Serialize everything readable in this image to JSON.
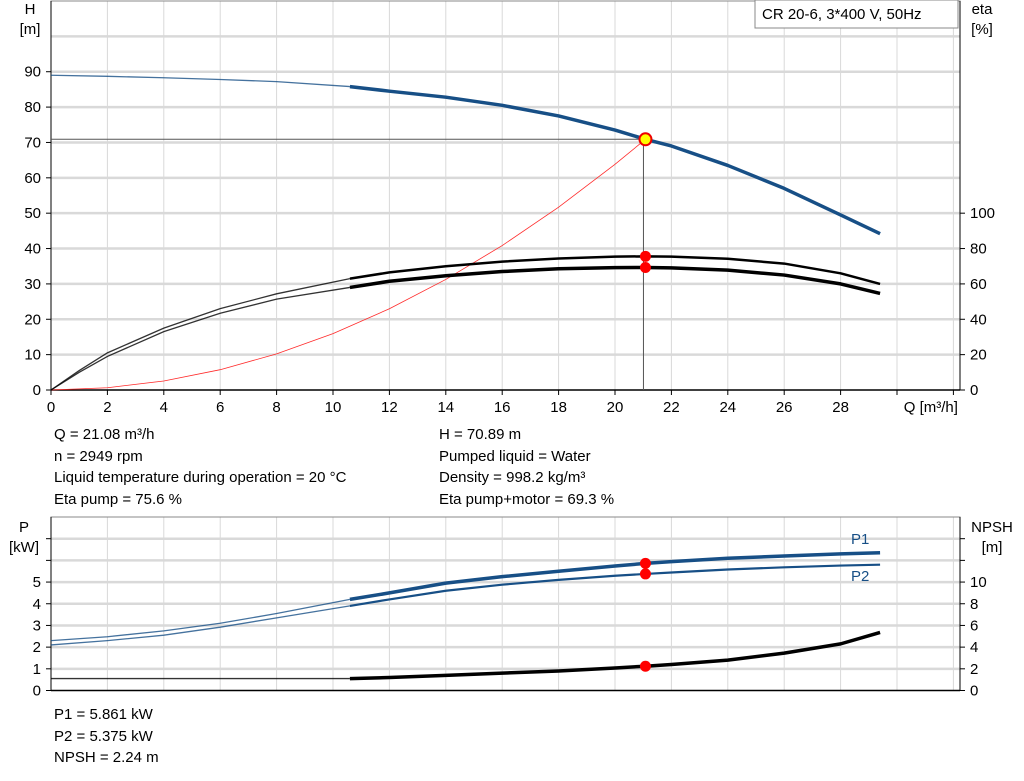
{
  "chart_data": [
    {
      "type": "line",
      "title": "CR 20-6, 3*400 V, 50Hz",
      "xlabel": "Q [m³/h]",
      "ylabel_left": [
        "H",
        "[m]"
      ],
      "ylabel_right": [
        "eta",
        "[%]"
      ],
      "xlim": [
        0,
        32
      ],
      "ylim_left": [
        0,
        110
      ],
      "ylim_right_eta": [
        0,
        100
      ],
      "x_ticks": [
        0,
        2,
        4,
        6,
        8,
        10,
        12,
        14,
        16,
        18,
        20,
        22,
        24,
        26,
        28
      ],
      "y_ticks_left": [
        0,
        10,
        20,
        30,
        40,
        50,
        60,
        70,
        80,
        90
      ],
      "y_ticks_right": [
        0,
        20,
        40,
        60,
        80,
        100
      ],
      "grid": true,
      "series": [
        {
          "key": "H",
          "axis": "left",
          "color": "#174f86",
          "x": [
            0,
            2,
            4,
            6,
            8,
            10.6,
            12,
            14,
            16,
            18,
            20,
            21.08,
            22,
            24,
            26,
            28,
            29.4
          ],
          "y": [
            89,
            88.7,
            88.3,
            87.8,
            87.2,
            85.8,
            84.5,
            82.8,
            80.5,
            77.5,
            73.5,
            70.89,
            69,
            63.5,
            57,
            49.5,
            44.2
          ]
        },
        {
          "key": "eta_pump",
          "axis": "right",
          "color": "#000000",
          "x": [
            0,
            1,
            2,
            4,
            6,
            8,
            10.6,
            12,
            14,
            16,
            18,
            20,
            21.08,
            22,
            24,
            26,
            28,
            29.4
          ],
          "y": [
            0,
            11,
            21,
            35,
            46,
            54.4,
            63,
            66.5,
            70,
            72.6,
            74.4,
            75.4,
            75.6,
            75.4,
            74.2,
            71.5,
            66,
            60
          ]
        },
        {
          "key": "eta_pump_motor",
          "axis": "right",
          "color": "#000000",
          "x": [
            0,
            1,
            2,
            4,
            6,
            8,
            10.6,
            12,
            14,
            16,
            18,
            20,
            21.08,
            22,
            24,
            26,
            28,
            29.4
          ],
          "y": [
            0,
            10,
            19,
            33,
            43.4,
            51.4,
            58,
            61.5,
            64.6,
            67,
            68.6,
            69.2,
            69.3,
            69.1,
            67.8,
            65,
            60,
            54.6
          ]
        },
        {
          "key": "system",
          "axis": "left",
          "color": "#ff2a2a",
          "x": [
            0,
            2,
            4,
            6,
            8,
            10,
            12,
            14,
            16,
            18,
            20,
            21.08
          ],
          "y": [
            0,
            0.64,
            2.55,
            5.74,
            10.2,
            15.95,
            22.97,
            31.27,
            40.84,
            51.69,
            63.81,
            70.89
          ]
        }
      ],
      "operating_point": {
        "Q": 21.08,
        "H": 70.89,
        "eta_pump": 75.6,
        "eta_pump_motor": 69.3
      }
    },
    {
      "type": "line",
      "xlim": [
        0,
        32
      ],
      "ylabel_left": [
        "P",
        "[kW]"
      ],
      "ylabel_right": [
        "NPSH",
        "[m]"
      ],
      "ylim_left": [
        0,
        8
      ],
      "ylim_right": [
        0,
        16
      ],
      "y_ticks_left": [
        0,
        1,
        2,
        3,
        4,
        5
      ],
      "y_ticks_right": [
        0,
        2,
        4,
        6,
        8,
        10
      ],
      "grid": true,
      "series": [
        {
          "name": "P1",
          "axis": "left",
          "color": "#174f86",
          "x": [
            0,
            2,
            4,
            6,
            8,
            10.6,
            12,
            14,
            16,
            18,
            20,
            21.08,
            22,
            24,
            26,
            28,
            29.4
          ],
          "y": [
            2.3,
            2.48,
            2.75,
            3.1,
            3.55,
            4.2,
            4.5,
            4.95,
            5.25,
            5.5,
            5.74,
            5.861,
            5.94,
            6.1,
            6.2,
            6.3,
            6.35
          ]
        },
        {
          "name": "P2",
          "axis": "left",
          "color": "#174f86",
          "x": [
            0,
            2,
            4,
            6,
            8,
            10.6,
            12,
            14,
            16,
            18,
            20,
            21.08,
            22,
            24,
            26,
            28,
            29.4
          ],
          "y": [
            2.1,
            2.3,
            2.55,
            2.92,
            3.35,
            3.9,
            4.2,
            4.6,
            4.88,
            5.1,
            5.29,
            5.375,
            5.44,
            5.58,
            5.68,
            5.76,
            5.8
          ]
        },
        {
          "key": "NPSH",
          "axis": "right",
          "color": "#000000",
          "x": [
            0,
            4,
            8,
            10.6,
            12,
            14,
            16,
            18,
            20,
            21.08,
            22,
            24,
            26,
            28,
            29.4
          ],
          "y": [
            1.1,
            1.1,
            1.1,
            1.1,
            1.2,
            1.4,
            1.6,
            1.8,
            2.08,
            2.24,
            2.4,
            2.8,
            3.45,
            4.3,
            5.35
          ]
        }
      ],
      "operating_point": {
        "Q": 21.08,
        "P1": 5.861,
        "P2": 5.375,
        "NPSH": 2.24
      }
    }
  ],
  "info_top_left": [
    "Q = 21.08 m³/h",
    "n = 2949 rpm",
    "Liquid temperature during operation = 20 °C",
    "Eta pump = 75.6 %"
  ],
  "info_top_right": [
    "H = 70.89 m",
    "Pumped liquid = Water",
    "Density = 998.2 kg/m³",
    "Eta pump+motor = 69.3 %"
  ],
  "info_bottom": [
    "P1 = 5.861 kW",
    "P2 = 5.375 kW",
    "NPSH = 2.24 m"
  ],
  "colors": {
    "pump_curve": "#174f86",
    "efficiency": "#000000",
    "system_curve": "#ff2a2a",
    "marker": "#ff0000",
    "duty_point": "#ffff00",
    "grid": "#d9d9d9"
  }
}
